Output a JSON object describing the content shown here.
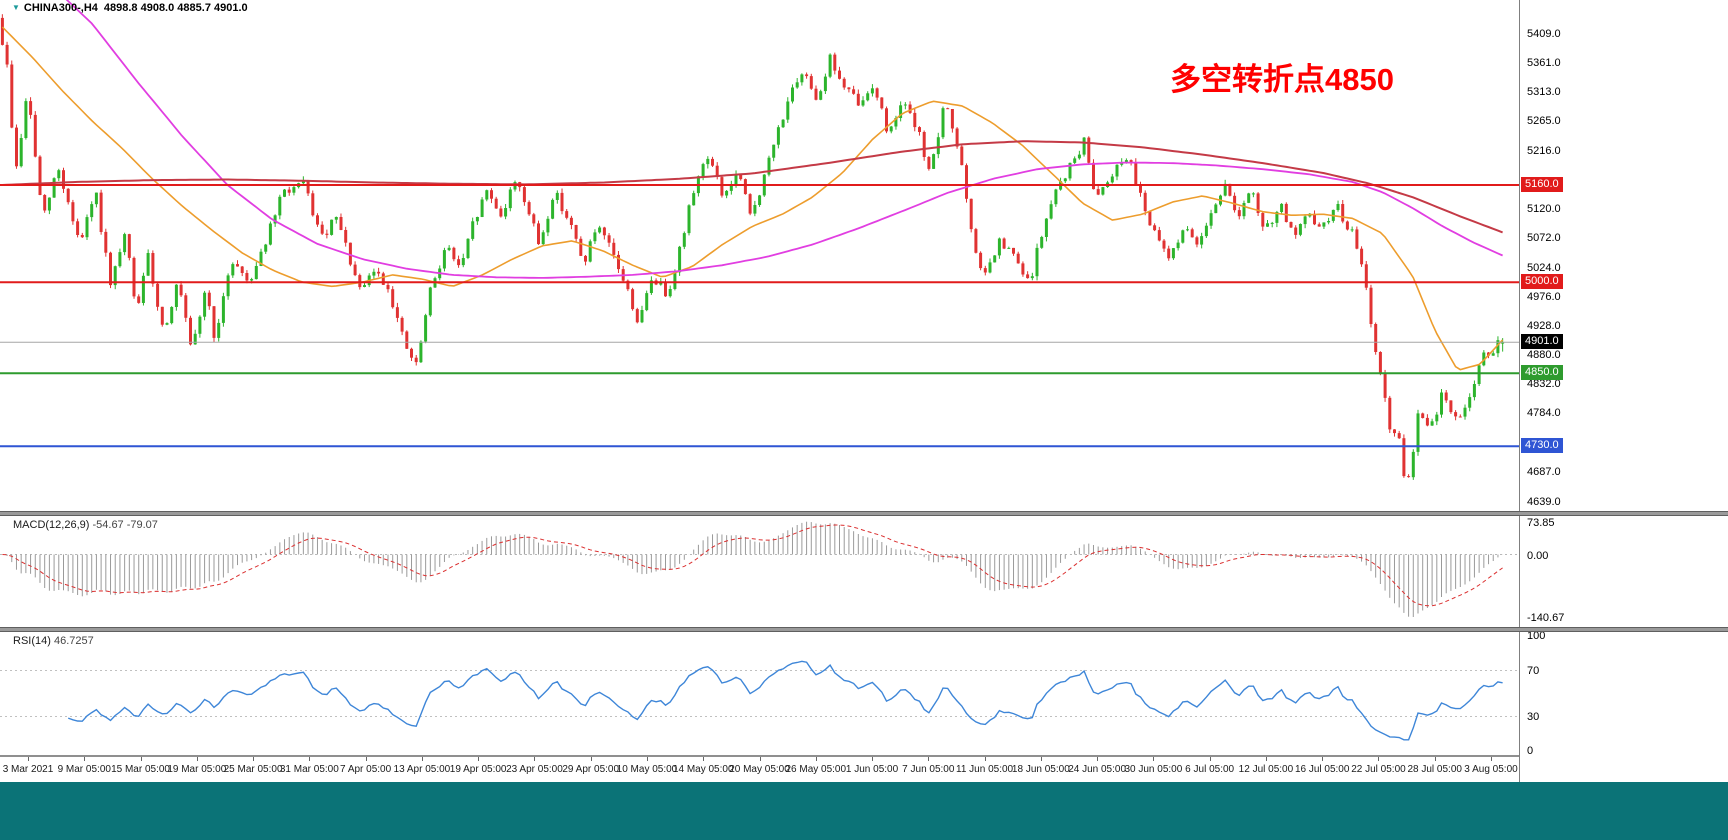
{
  "header": {
    "symbol_period": "CHINA300-,H4",
    "quote_text": "4898.8 4908.0 4885.7 4901.0"
  },
  "annotation": {
    "text": "多空转折点4850",
    "color": "#ff0000"
  },
  "colors": {
    "bottom_bar": "#0b7377",
    "pane_bg": "#ffffff",
    "separator": "#9a9a9a"
  },
  "chart_data": {
    "type": "candlestick",
    "symbol": "CHINA300-",
    "timeframe": "H4",
    "bars": 320,
    "seed": 9,
    "noise": 9,
    "up_color": "#2cb42c",
    "down_color": "#e03232",
    "price_ylim": [
      4630,
      5448
    ],
    "ohlc_last": {
      "open": 4898.8,
      "high": 4908.0,
      "low": 4885.7,
      "close": 4901.0
    },
    "current_price": {
      "label": "4901.0",
      "price": 4901.0,
      "line_color": "#a6a6a6",
      "chip_bg": "#000000"
    },
    "levels": [
      {
        "label": "5160.0",
        "price": 5160.0,
        "color": "#e11b1b"
      },
      {
        "label": "5000.0",
        "price": 5000.0,
        "color": "#e11b1b"
      },
      {
        "label": "4850.0",
        "price": 4850.0,
        "color": "#2e9b2e"
      },
      {
        "label": "4730.0",
        "price": 4730.0,
        "color": "#2f55d4"
      }
    ],
    "price_axis_labels": [
      "5409.0",
      "5361.0",
      "5313.0",
      "5265.0",
      "5216.0",
      "5120.0",
      "5072.0",
      "5024.0",
      "4976.0",
      "4928.0",
      "4880.0",
      "4832.0",
      "4784.0",
      "4687.0",
      "4639.0"
    ],
    "time_labels": [
      "3 Mar 2021",
      "9 Mar 05:00",
      "15 Mar 05:00",
      "19 Mar 05:00",
      "25 Mar 05:00",
      "31 Mar 05:00",
      "7 Apr 05:00",
      "13 Apr 05:00",
      "19 Apr 05:00",
      "23 Apr 05:00",
      "29 Apr 05:00",
      "10 May 05:00",
      "14 May 05:00",
      "20 May 05:00",
      "26 May 05:00",
      "1 Jun 05:00",
      "7 Jun 05:00",
      "11 Jun 05:00",
      "18 Jun 05:00",
      "24 Jun 05:00",
      "30 Jun 05:00",
      "6 Jul 05:00",
      "12 Jul 05:00",
      "16 Jul 05:00",
      "22 Jul 05:00",
      "28 Jul 05:00",
      "3 Aug 05:00"
    ],
    "price_waypoints": [
      [
        0,
        5435
      ],
      [
        0.006,
        5360
      ],
      [
        0.012,
        5180
      ],
      [
        0.02,
        5315
      ],
      [
        0.03,
        5100
      ],
      [
        0.04,
        5190
      ],
      [
        0.055,
        5060
      ],
      [
        0.065,
        5150
      ],
      [
        0.075,
        4990
      ],
      [
        0.085,
        5080
      ],
      [
        0.092,
        4950
      ],
      [
        0.1,
        5040
      ],
      [
        0.11,
        4920
      ],
      [
        0.12,
        5000
      ],
      [
        0.129,
        4880
      ],
      [
        0.138,
        4990
      ],
      [
        0.145,
        4900
      ],
      [
        0.155,
        5040
      ],
      [
        0.167,
        5000
      ],
      [
        0.18,
        5080
      ],
      [
        0.19,
        5150
      ],
      [
        0.204,
        5160
      ],
      [
        0.215,
        5070
      ],
      [
        0.225,
        5105
      ],
      [
        0.235,
        5030
      ],
      [
        0.241,
        4980
      ],
      [
        0.25,
        5020
      ],
      [
        0.26,
        4990
      ],
      [
        0.27,
        4900
      ],
      [
        0.278,
        4860
      ],
      [
        0.288,
        4990
      ],
      [
        0.298,
        5060
      ],
      [
        0.308,
        5020
      ],
      [
        0.315,
        5090
      ],
      [
        0.325,
        5150
      ],
      [
        0.335,
        5110
      ],
      [
        0.345,
        5175
      ],
      [
        0.352,
        5120
      ],
      [
        0.36,
        5060
      ],
      [
        0.37,
        5150
      ],
      [
        0.38,
        5100
      ],
      [
        0.389,
        5030
      ],
      [
        0.398,
        5090
      ],
      [
        0.408,
        5050
      ],
      [
        0.418,
        4990
      ],
      [
        0.426,
        4930
      ],
      [
        0.435,
        5010
      ],
      [
        0.445,
        4980
      ],
      [
        0.455,
        5070
      ],
      [
        0.463,
        5160
      ],
      [
        0.472,
        5210
      ],
      [
        0.482,
        5140
      ],
      [
        0.492,
        5180
      ],
      [
        0.5,
        5110
      ],
      [
        0.508,
        5160
      ],
      [
        0.516,
        5230
      ],
      [
        0.525,
        5300
      ],
      [
        0.537,
        5345
      ],
      [
        0.545,
        5300
      ],
      [
        0.553,
        5370
      ],
      [
        0.562,
        5320
      ],
      [
        0.574,
        5290
      ],
      [
        0.582,
        5330
      ],
      [
        0.592,
        5240
      ],
      [
        0.6,
        5300
      ],
      [
        0.611,
        5250
      ],
      [
        0.62,
        5180
      ],
      [
        0.63,
        5300
      ],
      [
        0.64,
        5200
      ],
      [
        0.648,
        5060
      ],
      [
        0.656,
        5010
      ],
      [
        0.666,
        5065
      ],
      [
        0.676,
        5040
      ],
      [
        0.685,
        4995
      ],
      [
        0.695,
        5090
      ],
      [
        0.705,
        5160
      ],
      [
        0.715,
        5200
      ],
      [
        0.722,
        5230
      ],
      [
        0.73,
        5140
      ],
      [
        0.74,
        5180
      ],
      [
        0.75,
        5210
      ],
      [
        0.759,
        5150
      ],
      [
        0.768,
        5080
      ],
      [
        0.778,
        5040
      ],
      [
        0.788,
        5090
      ],
      [
        0.796,
        5060
      ],
      [
        0.805,
        5110
      ],
      [
        0.815,
        5160
      ],
      [
        0.825,
        5110
      ],
      [
        0.833,
        5150
      ],
      [
        0.842,
        5080
      ],
      [
        0.852,
        5130
      ],
      [
        0.862,
        5070
      ],
      [
        0.87,
        5110
      ],
      [
        0.88,
        5090
      ],
      [
        0.89,
        5125
      ],
      [
        0.9,
        5080
      ],
      [
        0.907,
        5020
      ],
      [
        0.915,
        4900
      ],
      [
        0.925,
        4760
      ],
      [
        0.931,
        4740
      ],
      [
        0.936,
        4645
      ],
      [
        0.944,
        4790
      ],
      [
        0.952,
        4755
      ],
      [
        0.96,
        4820
      ],
      [
        0.968,
        4770
      ],
      [
        0.976,
        4800
      ],
      [
        0.988,
        4880
      ],
      [
        1,
        4901
      ]
    ],
    "ma_lines": [
      {
        "name": "fast-orange",
        "color": "#ed9d2d",
        "width": 1.6,
        "waypoints": [
          [
            0,
            5420
          ],
          [
            0.02,
            5370
          ],
          [
            0.04,
            5315
          ],
          [
            0.06,
            5265
          ],
          [
            0.08,
            5220
          ],
          [
            0.1,
            5170
          ],
          [
            0.12,
            5125
          ],
          [
            0.14,
            5085
          ],
          [
            0.16,
            5048
          ],
          [
            0.18,
            5020
          ],
          [
            0.2,
            5000
          ],
          [
            0.22,
            4993
          ],
          [
            0.24,
            5000
          ],
          [
            0.26,
            5012
          ],
          [
            0.28,
            5005
          ],
          [
            0.3,
            4993
          ],
          [
            0.32,
            5012
          ],
          [
            0.34,
            5038
          ],
          [
            0.36,
            5060
          ],
          [
            0.38,
            5068
          ],
          [
            0.4,
            5052
          ],
          [
            0.42,
            5028
          ],
          [
            0.44,
            5008
          ],
          [
            0.46,
            5026
          ],
          [
            0.48,
            5062
          ],
          [
            0.5,
            5092
          ],
          [
            0.52,
            5112
          ],
          [
            0.54,
            5140
          ],
          [
            0.56,
            5180
          ],
          [
            0.58,
            5235
          ],
          [
            0.6,
            5278
          ],
          [
            0.62,
            5298
          ],
          [
            0.64,
            5290
          ],
          [
            0.66,
            5262
          ],
          [
            0.68,
            5225
          ],
          [
            0.7,
            5178
          ],
          [
            0.72,
            5130
          ],
          [
            0.74,
            5102
          ],
          [
            0.76,
            5112
          ],
          [
            0.78,
            5132
          ],
          [
            0.8,
            5142
          ],
          [
            0.82,
            5130
          ],
          [
            0.84,
            5116
          ],
          [
            0.86,
            5110
          ],
          [
            0.88,
            5112
          ],
          [
            0.9,
            5105
          ],
          [
            0.92,
            5080
          ],
          [
            0.94,
            5010
          ],
          [
            0.955,
            4920
          ],
          [
            0.97,
            4855
          ],
          [
            0.985,
            4865
          ],
          [
            1,
            4905
          ]
        ]
      },
      {
        "name": "mid-magenta",
        "color": "#e13ee1",
        "width": 1.8,
        "waypoints": [
          [
            0,
            5560
          ],
          [
            0.03,
            5495
          ],
          [
            0.06,
            5425
          ],
          [
            0.09,
            5330
          ],
          [
            0.12,
            5240
          ],
          [
            0.15,
            5160
          ],
          [
            0.18,
            5103
          ],
          [
            0.21,
            5063
          ],
          [
            0.24,
            5038
          ],
          [
            0.27,
            5022
          ],
          [
            0.3,
            5012
          ],
          [
            0.33,
            5008
          ],
          [
            0.36,
            5007
          ],
          [
            0.39,
            5009
          ],
          [
            0.42,
            5012
          ],
          [
            0.45,
            5018
          ],
          [
            0.48,
            5028
          ],
          [
            0.51,
            5042
          ],
          [
            0.54,
            5062
          ],
          [
            0.57,
            5088
          ],
          [
            0.6,
            5117
          ],
          [
            0.63,
            5147
          ],
          [
            0.66,
            5170
          ],
          [
            0.69,
            5186
          ],
          [
            0.72,
            5194
          ],
          [
            0.75,
            5197
          ],
          [
            0.78,
            5196
          ],
          [
            0.81,
            5192
          ],
          [
            0.84,
            5186
          ],
          [
            0.87,
            5178
          ],
          [
            0.9,
            5165
          ],
          [
            0.92,
            5148
          ],
          [
            0.94,
            5122
          ],
          [
            0.96,
            5092
          ],
          [
            0.98,
            5066
          ],
          [
            1,
            5044
          ]
        ]
      },
      {
        "name": "slow-red",
        "color": "#c43a46",
        "width": 2,
        "waypoints": [
          [
            0,
            5160
          ],
          [
            0.05,
            5165
          ],
          [
            0.1,
            5168
          ],
          [
            0.15,
            5169
          ],
          [
            0.2,
            5167
          ],
          [
            0.25,
            5164
          ],
          [
            0.3,
            5162
          ],
          [
            0.35,
            5161
          ],
          [
            0.4,
            5164
          ],
          [
            0.45,
            5170
          ],
          [
            0.5,
            5179
          ],
          [
            0.55,
            5196
          ],
          [
            0.6,
            5215
          ],
          [
            0.64,
            5227
          ],
          [
            0.68,
            5232
          ],
          [
            0.72,
            5230
          ],
          [
            0.76,
            5222
          ],
          [
            0.8,
            5210
          ],
          [
            0.84,
            5196
          ],
          [
            0.88,
            5180
          ],
          [
            0.91,
            5163
          ],
          [
            0.94,
            5140
          ],
          [
            0.97,
            5110
          ],
          [
            1,
            5082
          ]
        ]
      }
    ],
    "indicators": {
      "macd": {
        "title": "MACD(12,26,9)",
        "values_text": "-54.67 -79.07",
        "macd_value": -54.67,
        "signal_value": -79.07,
        "ylim": [
          -152,
          80
        ],
        "scale_labels": [
          "73.85",
          "0.00",
          "-140.67"
        ],
        "histogram_color": "#9a9a9a",
        "signal_color": "#db3030"
      },
      "rsi": {
        "title": "RSI(14)",
        "value_text": "46.7257",
        "value": 46.7257,
        "ylim": [
          0,
          100
        ],
        "levels": [
          70,
          30
        ],
        "scale_labels": [
          "100",
          "70",
          "30",
          "0"
        ],
        "line_color": "#3e86d8"
      }
    }
  }
}
